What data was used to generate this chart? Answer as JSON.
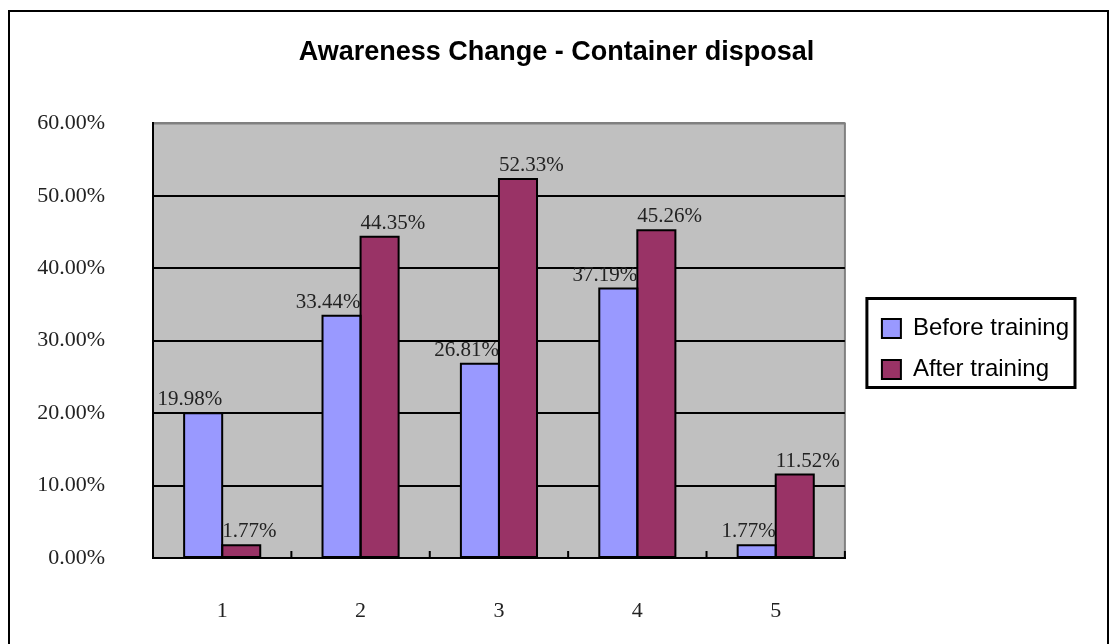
{
  "chart_data": {
    "type": "bar",
    "title": "Awareness Change - Container disposal",
    "categories": [
      "1",
      "2",
      "3",
      "4",
      "5"
    ],
    "series": [
      {
        "name": "Before training",
        "color": "#9999ff",
        "values": [
          19.98,
          33.44,
          26.81,
          37.19,
          1.77
        ],
        "value_labels": [
          "19.98%",
          "33.44%",
          "26.81%",
          "37.19%",
          "1.77%"
        ]
      },
      {
        "name": "After training",
        "color": "#993366",
        "values": [
          1.77,
          44.35,
          52.33,
          45.26,
          11.52
        ],
        "value_labels": [
          "1.77%",
          "44.35%",
          "52.33%",
          "45.26%",
          "11.52%"
        ]
      }
    ],
    "ylim": [
      0,
      60
    ],
    "yticks": [
      {
        "value": 0,
        "label": "0.00%"
      },
      {
        "value": 10,
        "label": "10.00%"
      },
      {
        "value": 20,
        "label": "20.00%"
      },
      {
        "value": 30,
        "label": "30.00%"
      },
      {
        "value": 40,
        "label": "40.00%"
      },
      {
        "value": 50,
        "label": "50.00%"
      },
      {
        "value": 60,
        "label": "60.00%"
      }
    ],
    "grid": "y",
    "legend": "right"
  }
}
